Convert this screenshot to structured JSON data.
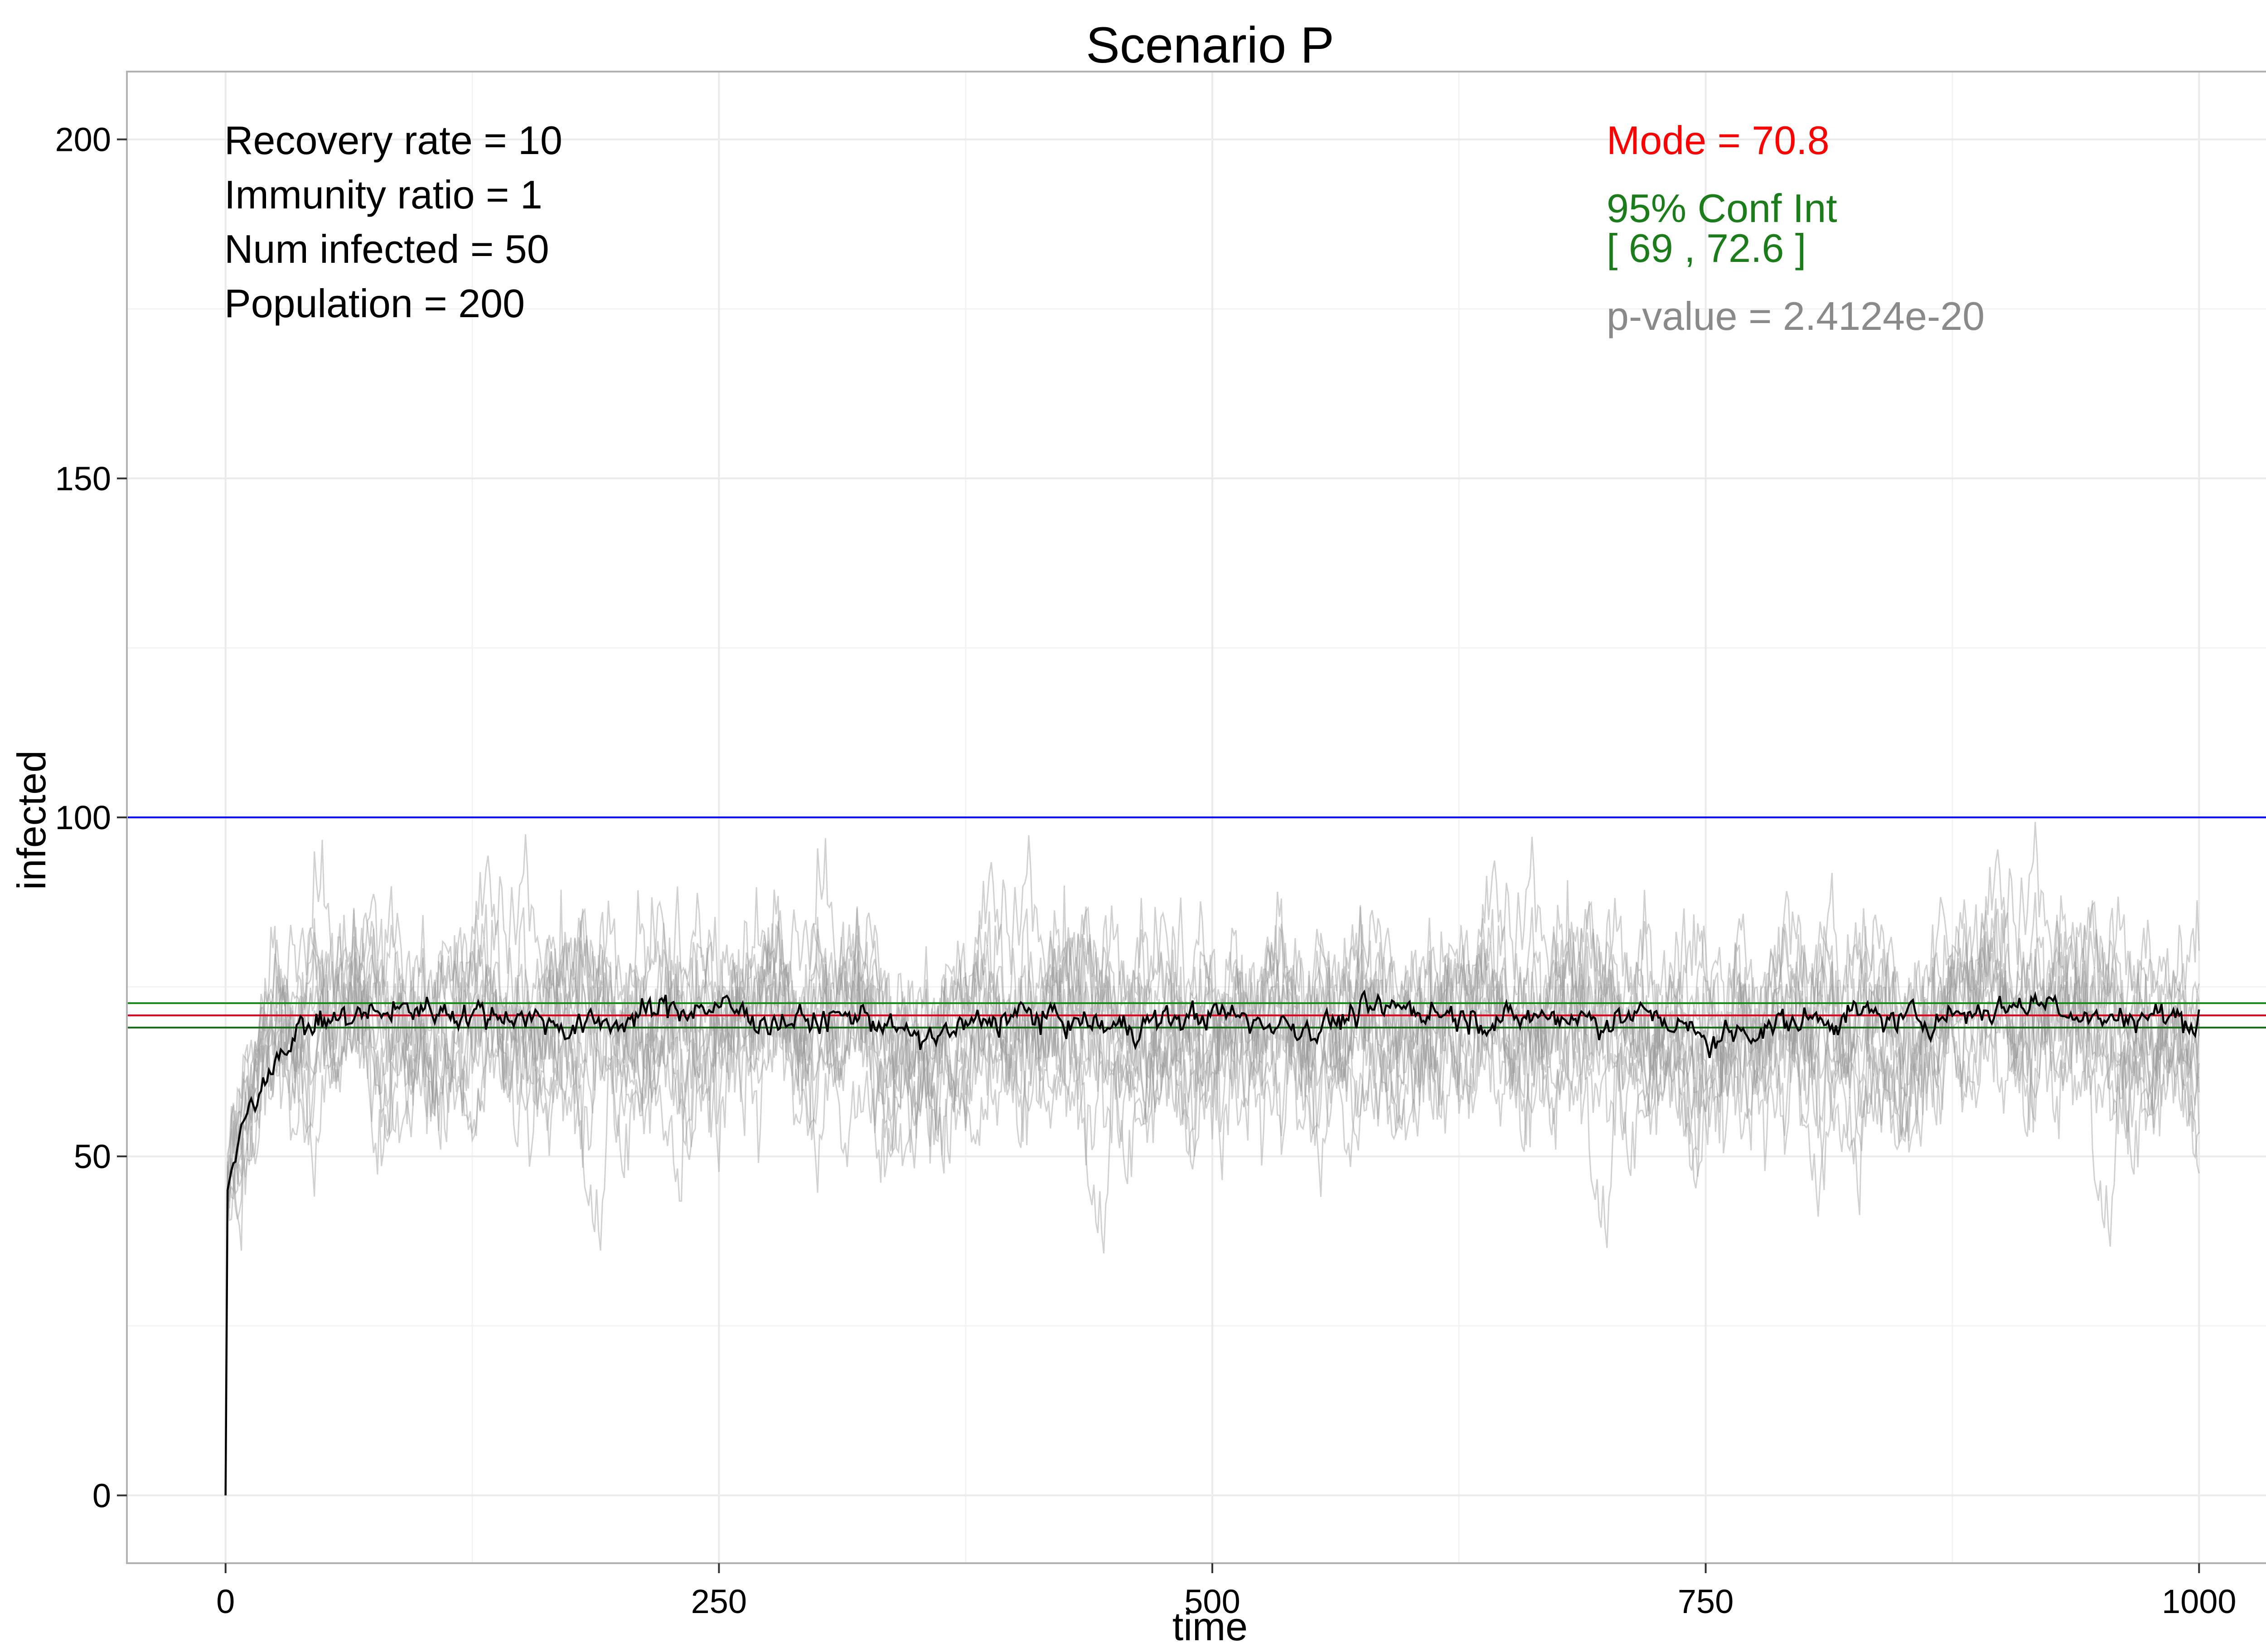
{
  "chart_data": {
    "type": "line",
    "title": "Scenario P",
    "xlabel": "time",
    "ylabel": "infected",
    "xlim": [
      -50,
      1050
    ],
    "ylim": [
      -10,
      210
    ],
    "x_ticks": [
      0,
      250,
      500,
      750,
      1000
    ],
    "y_ticks": [
      0,
      50,
      100,
      150,
      200
    ],
    "x_tick_labels": [
      "0",
      "250",
      "500",
      "750",
      "1000"
    ],
    "y_tick_labels": [
      "0",
      "50",
      "100",
      "150",
      "200"
    ],
    "grid": true,
    "legend": "none",
    "annotations": {
      "recovery_rate": "Recovery rate = 10",
      "immunity_ratio": "Immunity ratio = 1",
      "num_infected": "Num infected = 50",
      "population": "Population = 200",
      "mode": "Mode = 70.8",
      "conf_int_label": "95% Conf Int",
      "conf_int_range": "[ 69 , 72.6 ]",
      "p_value": "p-value = 2.4124e-20"
    },
    "reference_lines": [
      {
        "kind": "population_half",
        "y": 100,
        "color": "#0000ff"
      },
      {
        "kind": "conf_int_upper",
        "y": 72.6,
        "color": "#1a8c1a"
      },
      {
        "kind": "mode",
        "y": 70.8,
        "color": "#e8001c"
      },
      {
        "kind": "conf_int_lower",
        "y": 69,
        "color": "#1a6b1a"
      }
    ],
    "simulation_runs": 12,
    "mean_path": {
      "x": [
        0,
        1,
        3,
        6,
        10,
        15,
        20,
        25,
        30,
        40,
        50,
        75,
        100,
        125,
        150,
        175,
        200,
        225,
        250,
        275,
        300,
        325,
        350,
        375,
        400,
        425,
        450,
        475,
        500,
        525,
        550,
        575,
        600,
        625,
        650,
        675,
        700,
        725,
        750,
        775,
        800,
        825,
        850,
        875,
        900,
        925,
        950,
        975,
        1000
      ],
      "y": [
        0,
        45,
        48,
        51,
        55,
        58,
        62,
        65,
        67,
        69,
        70,
        71,
        72,
        71,
        71,
        69,
        70,
        72,
        72,
        70,
        70,
        71,
        67,
        69,
        71,
        70,
        69,
        70,
        71,
        70,
        69,
        71,
        72,
        71,
        70,
        71,
        70,
        71,
        67,
        69,
        70,
        71,
        70,
        71,
        72,
        73,
        70,
        71,
        70
      ]
    },
    "colors": {
      "mean_line": "#000000",
      "runs": "#9a9a9a",
      "grid": "#ebebeb",
      "panel_border": "#b3b3b3"
    }
  }
}
